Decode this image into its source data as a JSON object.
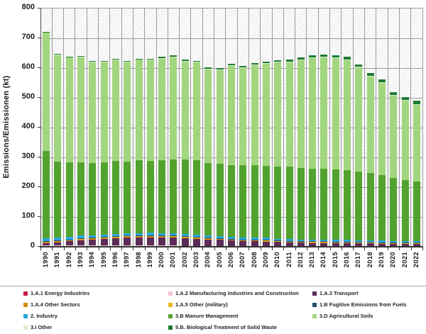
{
  "chart_data": {
    "type": "bar",
    "stacked": true,
    "title": "",
    "xlabel": "",
    "ylabel": "Emissions/Emissionen (kt)",
    "ylim": [
      0,
      800
    ],
    "ytick_step": 100,
    "grid": true,
    "plot_background": "diagonal-hatch",
    "legend_position": "bottom",
    "categories": [
      "1990",
      "1991",
      "1992",
      "1993",
      "1994",
      "1995",
      "1996",
      "1997",
      "1998",
      "1999",
      "2000",
      "2001",
      "2002",
      "2003",
      "2004",
      "2005",
      "2006",
      "2007",
      "2008",
      "2009",
      "2010",
      "2011",
      "2012",
      "2013",
      "2014",
      "2015",
      "2016",
      "2017",
      "2018",
      "2019",
      "2020",
      "2021",
      "2022"
    ],
    "series": [
      {
        "name": "1.A.1 Energy Industries",
        "color": "#C51E4A",
        "values": [
          3,
          3,
          3,
          3,
          3,
          3,
          3,
          3,
          3,
          3,
          3,
          3,
          2,
          2,
          2,
          2,
          2,
          2,
          2,
          2,
          2,
          2,
          2,
          2,
          2,
          2,
          2,
          2,
          2,
          2,
          2,
          2,
          2
        ]
      },
      {
        "name": "1.A.2 Manufacturing Industries and Construction",
        "color": "#F3C3D0",
        "values": [
          1,
          1,
          1,
          1,
          1,
          1,
          1,
          1,
          1,
          1,
          1,
          1,
          1,
          1,
          1,
          1,
          1,
          1,
          1,
          1,
          1,
          1,
          1,
          1,
          1,
          1,
          1,
          1,
          1,
          1,
          1,
          1,
          1
        ]
      },
      {
        "name": "1.A.3 Transport",
        "color": "#5B2C58",
        "values": [
          8,
          11,
          14,
          17,
          20,
          22,
          24,
          26,
          27,
          28,
          28,
          27,
          26,
          24,
          22,
          20,
          18,
          16,
          15,
          14,
          13,
          12,
          11,
          10,
          10,
          9,
          9,
          8,
          8,
          7,
          7,
          6,
          6
        ]
      },
      {
        "name": "1.A.4 Other Sectors",
        "color": "#D88C12",
        "values": [
          5,
          5,
          5,
          5,
          5,
          5,
          5,
          5,
          5,
          5,
          4,
          4,
          4,
          4,
          4,
          4,
          4,
          4,
          4,
          4,
          3,
          3,
          3,
          3,
          3,
          3,
          3,
          3,
          3,
          3,
          3,
          3,
          3
        ]
      },
      {
        "name": "1.A.5 Other (military)",
        "color": "#EDB51C",
        "values": [
          1,
          1,
          1,
          1,
          1,
          1,
          1,
          1,
          1,
          1,
          1,
          1,
          1,
          1,
          1,
          1,
          1,
          1,
          1,
          1,
          1,
          1,
          1,
          1,
          1,
          1,
          1,
          1,
          1,
          1,
          1,
          1,
          1
        ]
      },
      {
        "name": "1.B Fugitive Emissions from Fuels",
        "color": "#1F4E69",
        "values": [
          1,
          1,
          1,
          1,
          1,
          1,
          1,
          1,
          1,
          1,
          1,
          1,
          1,
          1,
          1,
          1,
          1,
          1,
          1,
          1,
          1,
          1,
          1,
          1,
          1,
          1,
          1,
          1,
          1,
          1,
          1,
          1,
          1
        ]
      },
      {
        "name": "2. Industry",
        "color": "#2AA7DD",
        "values": [
          10,
          9,
          9,
          9,
          8,
          8,
          8,
          8,
          8,
          8,
          8,
          8,
          7,
          7,
          7,
          7,
          7,
          7,
          7,
          7,
          6,
          6,
          6,
          6,
          6,
          6,
          6,
          6,
          6,
          6,
          5,
          5,
          5
        ]
      },
      {
        "name": "3.B Manure Management",
        "color": "#52A32E",
        "values": [
          293,
          255,
          250,
          247,
          243,
          243,
          244,
          240,
          244,
          241,
          245,
          249,
          250,
          250,
          243,
          243,
          241,
          241,
          244,
          242,
          243,
          242,
          240,
          238,
          239,
          237,
          234,
          231,
          225,
          219,
          210,
          205,
          199
        ]
      },
      {
        "name": "3.D Agricultural Soils",
        "color": "#A2D67E",
        "values": [
          398,
          359,
          353,
          354,
          339,
          337,
          341,
          335,
          339,
          340,
          342,
          343,
          331,
          330,
          316,
          316,
          334,
          328,
          336,
          343,
          350,
          353,
          362,
          373,
          374,
          375,
          371,
          350,
          326,
          311,
          278,
          267,
          260
        ]
      },
      {
        "name": "3.I Other",
        "color": "#DCEED2",
        "values": [
          1,
          1,
          1,
          1,
          1,
          1,
          1,
          1,
          1,
          1,
          1,
          1,
          1,
          1,
          1,
          1,
          1,
          1,
          1,
          1,
          1,
          1,
          1,
          1,
          1,
          1,
          1,
          1,
          1,
          1,
          1,
          1,
          1
        ]
      },
      {
        "name": "5.B. Biological Treatment of Solid Waste",
        "color": "#1E7B33",
        "values": [
          1,
          1,
          1,
          1,
          1,
          1,
          2,
          2,
          2,
          3,
          3,
          4,
          4,
          4,
          4,
          5,
          5,
          5,
          5,
          6,
          6,
          6,
          7,
          7,
          8,
          8,
          8,
          9,
          9,
          9,
          10,
          10,
          11
        ]
      }
    ]
  }
}
